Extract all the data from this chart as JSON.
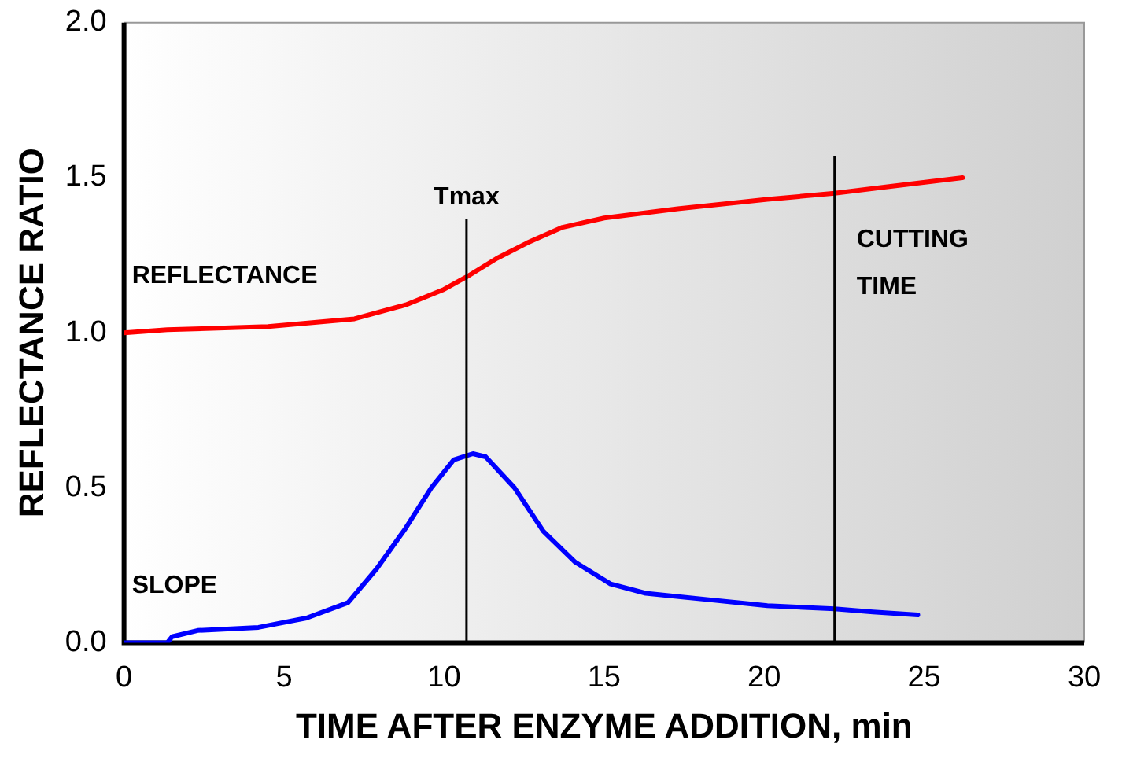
{
  "chart_data": {
    "type": "line",
    "xlabel": "TIME AFTER ENZYME ADDITION, min",
    "ylabel": "REFLECTANCE RATIO",
    "xlim": [
      0,
      30
    ],
    "xticks": [
      0,
      5,
      10,
      15,
      20,
      25,
      30
    ],
    "ylim": [
      0,
      2
    ],
    "yticks": [
      {
        "value": 0,
        "label": "0.0"
      },
      {
        "value": 0.5,
        "label": "0.5"
      },
      {
        "value": 1,
        "label": "1.0"
      },
      {
        "value": 1.5,
        "label": "1.5"
      },
      {
        "value": 2,
        "label": "2.0"
      }
    ],
    "grid": false,
    "legend": false,
    "marker": "none",
    "line_style": "solid",
    "series": [
      {
        "name": "REFLECTANCE",
        "color": "#ff0000",
        "x": [
          0,
          1.35,
          4.5,
          7.2,
          8.8,
          10,
          10.7,
          11.65,
          12.6,
          13.7,
          15,
          17.3,
          20.1,
          22.2,
          23.8,
          26.2
        ],
        "values": [
          1.0,
          1.01,
          1.02,
          1.045,
          1.09,
          1.14,
          1.18,
          1.24,
          1.29,
          1.34,
          1.37,
          1.4,
          1.43,
          1.45,
          1.47,
          1.5
        ]
      },
      {
        "name": "SLOPE",
        "color": "#0000ff",
        "x": [
          0,
          1.35,
          1.5,
          2.3,
          4.2,
          5.7,
          7,
          7.9,
          8.8,
          9.6,
          10.3,
          10.9,
          11.3,
          12.2,
          13.1,
          14.1,
          15.2,
          16.3,
          18.2,
          20.1,
          22.2,
          23.4,
          24.8
        ],
        "values": [
          0,
          0,
          0.02,
          0.04,
          0.05,
          0.08,
          0.13,
          0.24,
          0.37,
          0.5,
          0.59,
          0.61,
          0.6,
          0.5,
          0.36,
          0.26,
          0.19,
          0.16,
          0.14,
          0.12,
          0.11,
          0.1,
          0.09
        ]
      }
    ],
    "ref_lines": [
      {
        "axis": "x",
        "value": 10.7,
        "label": "Tmax"
      },
      {
        "axis": "x",
        "value": 22.2,
        "label": "CUTTING TIME"
      }
    ]
  }
}
